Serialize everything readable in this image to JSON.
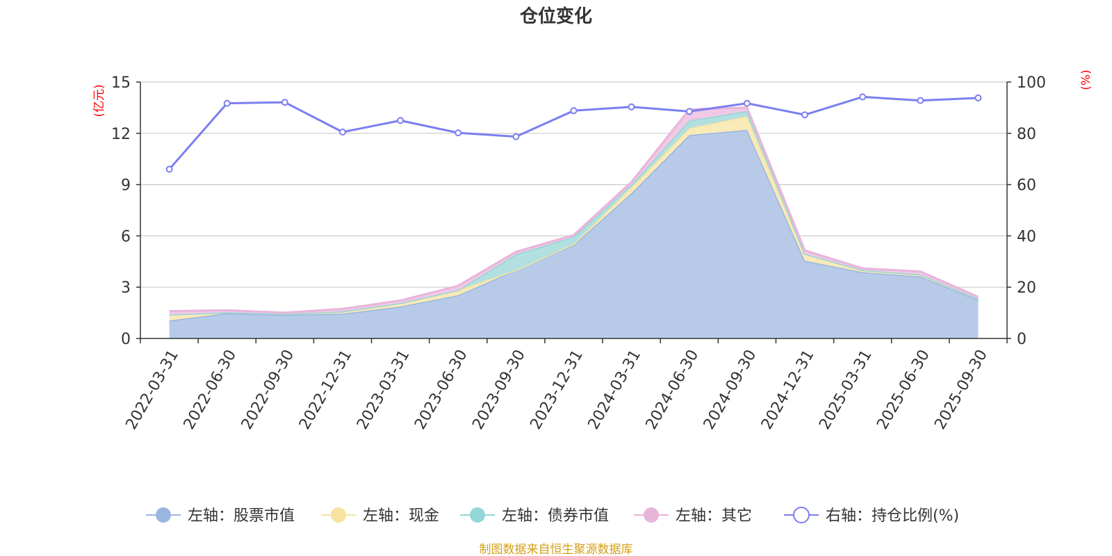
{
  "chart_data": {
    "type": "area",
    "title": "仓位变化",
    "categories": [
      "2022-03-31",
      "2022-06-30",
      "2022-09-30",
      "2022-12-31",
      "2023-03-31",
      "2023-06-30",
      "2023-09-30",
      "2023-12-31",
      "2024-03-31",
      "2024-06-30",
      "2024-09-30",
      "2024-12-31",
      "2025-03-31",
      "2025-06-30",
      "2025-09-30"
    ],
    "left_axis": {
      "unit": "(亿元)",
      "ylim": [
        0,
        15
      ],
      "ticks": [
        "0",
        "3",
        "6",
        "9",
        "12",
        "15"
      ]
    },
    "right_axis": {
      "unit": "(%)",
      "ylim": [
        0,
        100
      ],
      "ticks": [
        "0",
        "20",
        "40",
        "60",
        "80",
        "100"
      ]
    },
    "series": [
      {
        "name": "左轴：股票市值",
        "axis": "left",
        "type": "stacked-area",
        "color": "#9ab5e0",
        "fill": "#b7cbe9",
        "values": [
          1.05,
          1.48,
          1.38,
          1.45,
          1.87,
          2.53,
          4.0,
          5.48,
          8.5,
          11.9,
          12.2,
          4.55,
          3.88,
          3.62,
          2.25
        ]
      },
      {
        "name": "左轴：现金",
        "axis": "left",
        "type": "stacked-area",
        "color": "#f7e29f",
        "fill": "#f9eab8",
        "values": [
          0.35,
          0.05,
          0.05,
          0.13,
          0.2,
          0.3,
          0.0,
          0.05,
          0.35,
          0.4,
          0.8,
          0.4,
          0.12,
          0.12,
          0.08
        ]
      },
      {
        "name": "左轴：债券市值",
        "axis": "left",
        "type": "stacked-area",
        "color": "#94d6d6",
        "fill": "#b2e0e0",
        "values": [
          0.0,
          0.0,
          0.0,
          0.0,
          0.0,
          0.0,
          0.92,
          0.42,
          0.15,
          0.45,
          0.3,
          0.0,
          0.0,
          0.0,
          0.0
        ]
      },
      {
        "name": "左轴：其它",
        "axis": "left",
        "type": "stacked-area",
        "color": "#e8b5da",
        "fill": "#efc9e5",
        "values": [
          0.2,
          0.12,
          0.08,
          0.15,
          0.15,
          0.25,
          0.15,
          0.1,
          0.15,
          0.65,
          0.2,
          0.2,
          0.1,
          0.18,
          0.1
        ]
      },
      {
        "name": "右轴：持仓比例(%)",
        "axis": "right",
        "type": "line",
        "color": "#7b7ef0",
        "values": [
          66,
          91.7,
          92.1,
          80.5,
          85.0,
          80.2,
          78.7,
          88.8,
          90.3,
          88.5,
          91.7,
          87.2,
          94.2,
          92.8,
          93.8
        ]
      }
    ],
    "legend_position": "bottom",
    "grid": true
  },
  "source": {
    "text": "制图数据来自恒生聚源数据库",
    "color": "#d4a017"
  },
  "colors": {
    "unit": "#ff0000",
    "axis": "#333333",
    "grid": "#cccccc"
  }
}
